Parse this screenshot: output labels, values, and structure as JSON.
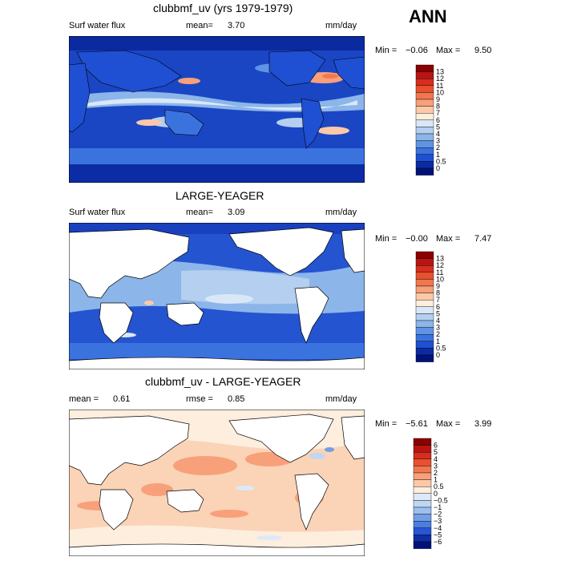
{
  "season": "ANN",
  "units": "mm/day",
  "panels": [
    {
      "title": "clubbmf_uv (yrs 1979-1979)",
      "left_label": "Surf water flux",
      "stat_label": "mean=",
      "stat_value": "3.70",
      "min_label": "Min =",
      "min_value": "−0.06",
      "max_label": "Max =",
      "max_value": "9.50",
      "colorbar": [
        "13",
        "12",
        "11",
        "10",
        "9",
        "8",
        "7",
        "6",
        "5",
        "4",
        "3",
        "2",
        "1",
        "0.5",
        "0"
      ],
      "colors": [
        "#8b0000",
        "#b81414",
        "#d62e1e",
        "#e8502f",
        "#f2774f",
        "#f7a07a",
        "#fbc9a8",
        "#fdeedd",
        "#d9e7f7",
        "#b4cff0",
        "#8cb5ea",
        "#5f93e4",
        "#3b73de",
        "#1f4fd2",
        "#0a2ba3",
        "#00127a"
      ],
      "land": "#1e50c8"
    },
    {
      "title": "LARGE-YEAGER",
      "left_label": "Surf water flux",
      "stat_label": "mean=",
      "stat_value": "3.09",
      "min_label": "Min =",
      "min_value": "−0.00",
      "max_label": "Max =",
      "max_value": "7.47",
      "colorbar": [
        "13",
        "12",
        "11",
        "10",
        "9",
        "8",
        "7",
        "6",
        "5",
        "4",
        "3",
        "2",
        "1",
        "0.5",
        "0"
      ],
      "colors": [
        "#8b0000",
        "#b81414",
        "#d62e1e",
        "#e8502f",
        "#f2774f",
        "#f7a07a",
        "#fbc9a8",
        "#fdeedd",
        "#d9e7f7",
        "#b4cff0",
        "#8cb5ea",
        "#5f93e4",
        "#3b73de",
        "#1f4fd2",
        "#0a2ba3",
        "#00127a"
      ],
      "land": "#ffffff"
    },
    {
      "title": "clubbmf_uv - LARGE-YEAGER",
      "left_label": "mean =",
      "left_value": "0.61",
      "stat_label": "rmse =",
      "stat_value": "0.85",
      "min_label": "Min =",
      "min_value": "−5.61",
      "max_label": "Max =",
      "max_value": "3.99",
      "colorbar": [
        "6",
        "5",
        "4",
        "3",
        "2",
        "1",
        "0.5",
        "0",
        "−0.5",
        "−1",
        "−2",
        "−3",
        "−4",
        "−5",
        "−6"
      ],
      "colors": [
        "#8b0000",
        "#b81414",
        "#d62e1e",
        "#e8502f",
        "#f2774f",
        "#f7a07a",
        "#fbc9a8",
        "#fdeedd",
        "#dde9f8",
        "#c0d7f2",
        "#9cbfee",
        "#729fe6",
        "#4a7fe0",
        "#2656d4",
        "#0d2fa6",
        "#00127a"
      ],
      "land": "#ffffff"
    }
  ]
}
